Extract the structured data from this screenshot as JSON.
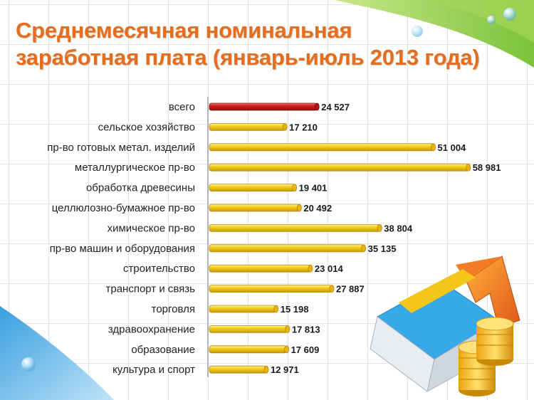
{
  "title_lines": [
    "Среднемесячная номинальная",
    "заработная плата (январь-июль 2013 года)"
  ],
  "colors": {
    "title": "#e46d1e",
    "bar_highlight": "#cc1f1f",
    "bar": "#f5c51a",
    "bar_edge": "#b8860b",
    "green_band": "#8dc63f",
    "blue_band": "#5bb4ea"
  },
  "chart_data": {
    "type": "bar",
    "orientation": "horizontal",
    "categories": [
      "всего",
      "сельское хозяйство",
      "пр-во готовых метал. изделий",
      "металлургическое пр-во",
      "обработка древесины",
      "целлюлозно-бумажное пр-во",
      "химическое пр-во",
      "пр-во машин и оборудования",
      "строительство",
      "транспорт и связь",
      "торговля",
      "здравоохранение",
      "образование",
      "культура и спорт"
    ],
    "values": [
      24527,
      17210,
      51004,
      58981,
      19401,
      20492,
      38804,
      35135,
      23014,
      27887,
      15198,
      17813,
      17609,
      12971
    ],
    "value_labels": [
      "24 527",
      "17 210",
      "51 004",
      "58 981",
      "19 401",
      "20 492",
      "38 804",
      "35 135",
      "23 014",
      "27 887",
      "15 198",
      "17 813",
      "17 609",
      "12 971"
    ],
    "highlight_index": 0,
    "xlim": [
      0,
      60000
    ],
    "grid": true,
    "legend": "none"
  }
}
